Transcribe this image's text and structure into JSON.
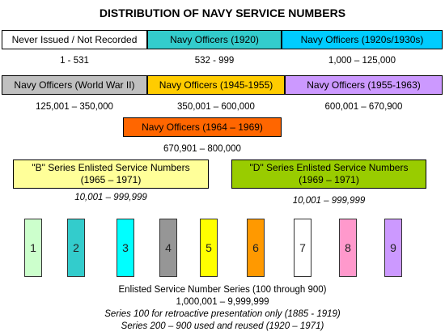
{
  "title": "DISTRIBUTION OF NAVY SERVICE NUMBERS",
  "row1": [
    {
      "label": "Never Issued / Not Recorded",
      "range": "1 - 531",
      "color": "#ffffff"
    },
    {
      "label": "Navy Officers (1920)",
      "range": "532 - 999",
      "color": "#33cccc"
    },
    {
      "label": "Navy Officers (1920s/1930s)",
      "range": "1,000 – 125,000",
      "color": "#00ccff"
    }
  ],
  "row2": [
    {
      "label": "Navy Officers (World War II)",
      "range": "125,001 – 350,000",
      "color": "#c0c0c0"
    },
    {
      "label": "Navy Officers (1945-1955)",
      "range": "350,001 – 600,000",
      "color": "#ffcc00"
    },
    {
      "label": "Navy Officers (1955-1963)",
      "range": "600,001 – 670,900",
      "color": "#cc99ff"
    }
  ],
  "row3": {
    "label": "Navy Officers (1964 – 1969)",
    "range": "670,901 – 800,000",
    "color": "#ff6600"
  },
  "series": [
    {
      "label_line1": "\"B\" Series Enlisted Service Numbers",
      "label_line2": "(1965 – 1971)",
      "range": "10,001 – 999,999",
      "color": "#ffff99"
    },
    {
      "label_line1": "\"D\" Series Enlisted Service Numbers",
      "label_line2": "(1969 – 1971)",
      "range": "10,001 – 999,999",
      "color": "#99cc00"
    }
  ],
  "digits": [
    {
      "label": "1",
      "color": "#ccffcc"
    },
    {
      "label": "2",
      "color": "#33cccc"
    },
    {
      "label": "3",
      "color": "#00ffff"
    },
    {
      "label": "4",
      "color": "#969696"
    },
    {
      "label": "5",
      "color": "#ffff00"
    },
    {
      "label": "6",
      "color": "#ff9900"
    },
    {
      "label": "7",
      "color": "#ffffff"
    },
    {
      "label": "8",
      "color": "#ff99cc"
    },
    {
      "label": "9",
      "color": "#cc99ff"
    }
  ],
  "footer": {
    "line1": "Enlisted Service Number Series (100 through 900)",
    "line2": "1,000,001 – 9,999,999",
    "line3": "Series 100 for retroactive presentation only (1885 - 1919)",
    "line4": "Series 200 – 900 used and reused (1920 – 1971)"
  }
}
